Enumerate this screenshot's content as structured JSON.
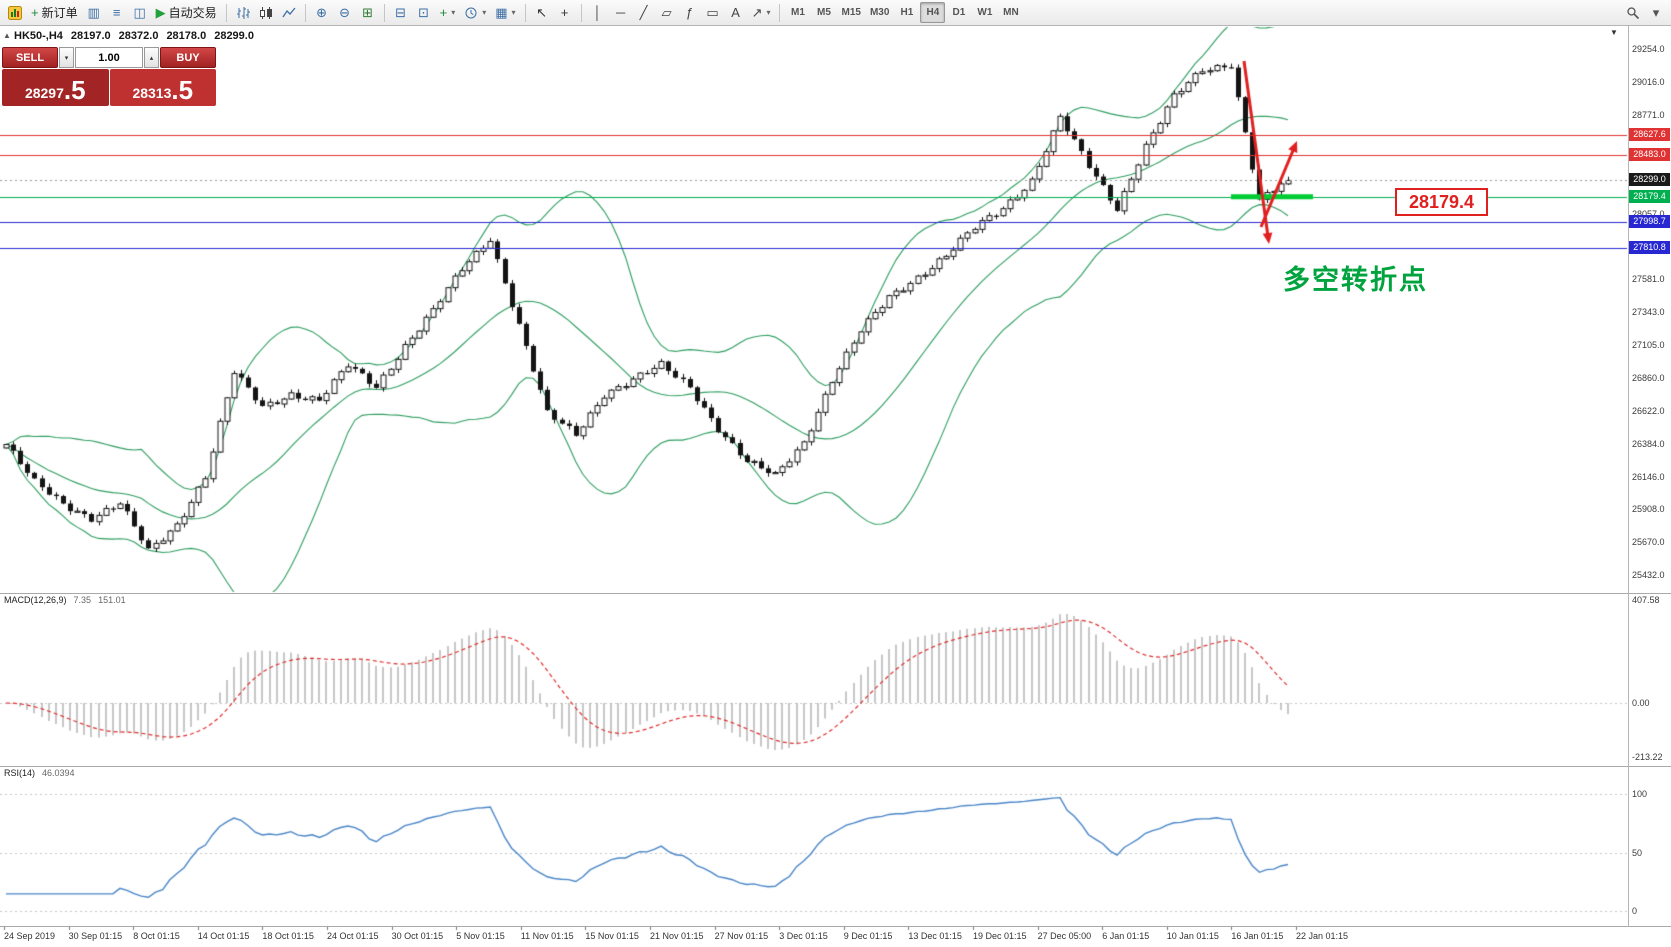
{
  "toolbar": {
    "items": [
      {
        "type": "appicon",
        "name": "app-icon"
      },
      {
        "name": "new-order-button",
        "glyph": "+",
        "glyph_color": "#1e8a3c",
        "label": "新订单"
      },
      {
        "name": "chart-window-button",
        "glyph": "▥",
        "glyph_color": "#3b6ea5"
      },
      {
        "name": "market-watch-button",
        "glyph": "≡",
        "glyph_color": "#3b6ea5"
      },
      {
        "name": "navigator-button",
        "glyph": "◫",
        "glyph_color": "#3b6ea5"
      },
      {
        "name": "autotrade-button",
        "glyph": "▶",
        "glyph_color": "#22a03c",
        "label": "自动交易"
      },
      {
        "type": "sep"
      },
      {
        "name": "bar-chart-button",
        "svg": "bars"
      },
      {
        "name": "candlestick-chart-button",
        "svg": "candles"
      },
      {
        "name": "line-chart-button",
        "svg": "linechart"
      },
      {
        "type": "sep"
      },
      {
        "name": "zoom-in-button",
        "glyph": "⊕",
        "glyph_color": "#3b6ea5"
      },
      {
        "name": "zoom-out-button",
        "glyph": "⊖",
        "glyph_color": "#3b6ea5"
      },
      {
        "name": "tile-windows-button",
        "glyph": "⊞",
        "glyph_color": "#2f7d32"
      },
      {
        "type": "sep"
      },
      {
        "name": "arrange-windows-button",
        "glyph": "⊟",
        "glyph_color": "#3b6ea5"
      },
      {
        "name": "cascade-windows-button",
        "glyph": "⊡",
        "glyph_color": "#3b6ea5"
      },
      {
        "name": "indicators-button",
        "glyph": "+",
        "glyph_color": "#1e8a3c",
        "dropdown": true
      },
      {
        "name": "periods-button",
        "svg": "clock",
        "dropdown": true
      },
      {
        "name": "templates-button",
        "glyph": "▦",
        "glyph_color": "#3b6ea5",
        "dropdown": true
      },
      {
        "type": "sep"
      },
      {
        "name": "cursor-button",
        "glyph": "↖",
        "glyph_color": "#333333"
      },
      {
        "name": "crosshair-button",
        "glyph": "+",
        "glyph_color": "#333333"
      },
      {
        "type": "sep"
      },
      {
        "name": "vertical-line-button",
        "glyph": "│",
        "glyph_color": "#444444"
      },
      {
        "name": "horizontal-line-button",
        "glyph": "─",
        "glyph_color": "#444444"
      },
      {
        "name": "trendline-button",
        "glyph": "╱",
        "glyph_color": "#444444"
      },
      {
        "name": "channel-button",
        "glyph": "▱",
        "glyph_color": "#444444"
      },
      {
        "name": "fibonacci-button",
        "glyph": "ƒ",
        "glyph_color": "#444444"
      },
      {
        "name": "shapes-button",
        "glyph": "▭",
        "glyph_color": "#444444"
      },
      {
        "name": "text-button",
        "glyph": "A",
        "glyph_color": "#444444"
      },
      {
        "name": "arrows-button",
        "glyph": "↗",
        "glyph_color": "#444444",
        "dropdown": true
      },
      {
        "type": "sep"
      }
    ],
    "timeframes": [
      "M1",
      "M5",
      "M15",
      "M30",
      "H1",
      "H4",
      "D1",
      "W1",
      "MN"
    ],
    "active_timeframe": "H4",
    "right_items": [
      {
        "name": "search-button",
        "svg": "magnifier"
      },
      {
        "name": "toolbar-more-button",
        "glyph": "▾",
        "glyph_color": "#555555"
      }
    ]
  },
  "icons": {
    "caret_down": "▾",
    "caret_up": "▴",
    "collapse_marker": "▲",
    "shift_marker": "▼"
  },
  "chart": {
    "header": {
      "symbol_period": "HK50-,H4",
      "open": "28197.0",
      "high": "28372.0",
      "low": "28178.0",
      "close": "28299.0"
    },
    "one_click": {
      "sell_label": "SELL",
      "buy_label": "BUY",
      "volume": "1.00",
      "sell_price_main": "28297",
      "sell_price_pips": ".5",
      "buy_price_main": "28313",
      "buy_price_pips": ".5"
    },
    "annotation_text": "多空转折点",
    "annotation_color": "#00a33e",
    "callout_price": "28179.4",
    "levels": [
      {
        "price": 28627.6,
        "color": "#e03232",
        "style": "solid"
      },
      {
        "price": 28483.0,
        "color": "#e03232",
        "style": "solid"
      },
      {
        "price": 28299.0,
        "color": "#9a9a9a",
        "style": "dotted"
      },
      {
        "price": 28179.4,
        "color": "#00b050",
        "style": "solid"
      },
      {
        "price": 27998.7,
        "color": "#2828d2",
        "style": "solid"
      },
      {
        "price": 27810.8,
        "color": "#2828d2",
        "style": "solid"
      }
    ],
    "axis_tags": [
      {
        "label": "28627.6",
        "price": 28627.6,
        "color": "#e03232"
      },
      {
        "label": "28483.0",
        "price": 28483.0,
        "color": "#e03232"
      },
      {
        "label": "28299.0",
        "price": 28299.0,
        "color": "#1a1a1a"
      },
      {
        "label": "28179.4",
        "price": 28179.4,
        "color": "#00b050"
      },
      {
        "label": "27998.7",
        "price": 27998.7,
        "color": "#2828d2"
      },
      {
        "label": "27810.8",
        "price": 27810.8,
        "color": "#2828d2"
      }
    ],
    "axis_labels": [
      {
        "label": "29254.0",
        "price": 29254.0
      },
      {
        "label": "29016.0",
        "price": 29016.0
      },
      {
        "label": "28771.0",
        "price": 28771.0
      },
      {
        "label": "28057.0",
        "price": 28057.0
      },
      {
        "label": "27581.0",
        "price": 27581.0
      },
      {
        "label": "27343.0",
        "price": 27343.0
      },
      {
        "label": "27105.0",
        "price": 27105.0
      },
      {
        "label": "26860.0",
        "price": 26860.0
      },
      {
        "label": "26622.0",
        "price": 26622.0
      },
      {
        "label": "26384.0",
        "price": 26384.0
      },
      {
        "label": "26146.0",
        "price": 26146.0
      },
      {
        "label": "25908.0",
        "price": 25908.0
      },
      {
        "label": "25670.0",
        "price": 25670.0
      },
      {
        "label": "25432.0",
        "price": 25432.0
      }
    ]
  },
  "time_axis": {
    "labels": [
      "24 Sep 2019",
      "30 Sep 01:15",
      "8 Oct 01:15",
      "14 Oct 01:15",
      "18 Oct 01:15",
      "24 Oct 01:15",
      "30 Oct 01:15",
      "5 Nov 01:15",
      "11 Nov 01:15",
      "15 Nov 01:15",
      "21 Nov 01:15",
      "27 Nov 01:15",
      "3 Dec 01:15",
      "9 Dec 01:15",
      "13 Dec 01:15",
      "19 Dec 01:15",
      "27 Dec 05:00",
      "6 Jan 01:15",
      "10 Jan 01:15",
      "16 Jan 01:15",
      "22 Jan 01:15"
    ]
  },
  "chart_data": {
    "type": "candlestick",
    "symbol": "HK50-",
    "period": "H4",
    "last_bar_ohlc": {
      "open": 28197.0,
      "high": 28372.0,
      "low": 28178.0,
      "close": 28299.0
    },
    "close_waypoints": [
      26380,
      26100,
      25950,
      25850,
      25950,
      25600,
      25800,
      26150,
      26900,
      26650,
      26750,
      26700,
      26950,
      26800,
      27100,
      27350,
      27650,
      27880,
      27250,
      26600,
      26450,
      26750,
      26850,
      26950,
      26800,
      26500,
      26250,
      26150,
      26400,
      26850,
      27200,
      27450,
      27600,
      27750,
      27950,
      28100,
      28300,
      28750,
      28400,
      28100,
      28550,
      28900,
      29100,
      29150,
      28150,
      28299
    ],
    "candles_per_waypoint": 4,
    "last_close": 28299.0,
    "price_axis": {
      "visible_top": 29254.0,
      "visible_bottom": 25432.0
    },
    "indicators": {
      "bollinger": {
        "name": "Bollinger Bands",
        "period": 20,
        "deviations": 2,
        "color": "#2f9e60"
      },
      "macd": {
        "label": "MACD(12,26,9)",
        "value_main": "7.35",
        "value_signal": "151.01",
        "fast": 12,
        "slow": 26,
        "signal": 9,
        "scale_labels": [
          "407.58",
          "0.00",
          "-213.22"
        ],
        "scale_values": [
          407.58,
          0,
          -213.22
        ]
      },
      "rsi": {
        "label": "RSI(14)",
        "value": "46.0394",
        "period": 14,
        "scale_labels": [
          "100",
          "50",
          "0"
        ],
        "scale_values": [
          100,
          50,
          0
        ]
      }
    }
  }
}
